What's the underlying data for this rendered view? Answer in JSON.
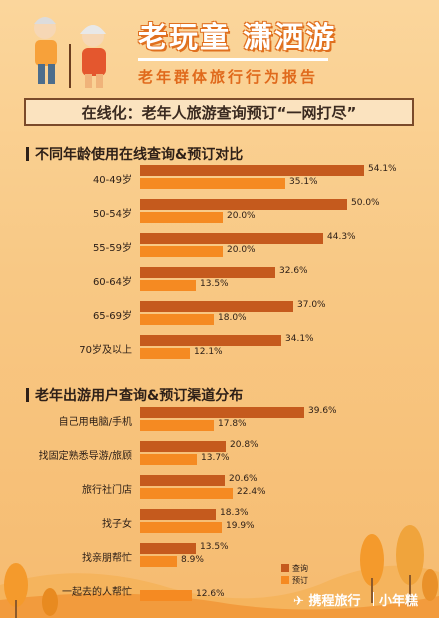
{
  "header": {
    "title": "老玩童 潇洒游",
    "subtitle": "老年群体旅行行为报告",
    "banner": "在线化：老年人旅游查询预订“一网打尽”"
  },
  "colors": {
    "query": "#c55a1d",
    "booking": "#f58a22"
  },
  "brand": {
    "name": "携程旅行",
    "partner": "小年糕",
    "logo_icon": "ctrip-logo-icon"
  },
  "legend": {
    "query": "查询",
    "booking": "预订"
  },
  "chart_data": [
    {
      "type": "bar",
      "orientation": "horizontal",
      "title": "不同年龄使用在线查询&预订对比",
      "categories": [
        "40-49岁",
        "50-54岁",
        "55-59岁",
        "60-64岁",
        "65-69岁",
        "70岁及以上"
      ],
      "series": [
        {
          "name": "查询",
          "values": [
            54.1,
            50.0,
            44.3,
            32.6,
            37.0,
            34.1
          ]
        },
        {
          "name": "预订",
          "values": [
            35.1,
            20.0,
            20.0,
            13.5,
            18.0,
            12.1
          ]
        }
      ],
      "value_labels": {
        "查询": [
          "54.1%",
          "50.0%",
          "44.3%",
          "32.6%",
          "37.0%",
          "34.1%"
        ],
        "预订": [
          "35.1%",
          "20.0%",
          "20.0%",
          "13.5%",
          "18.0%",
          "12.1%"
        ]
      },
      "xlim": [
        0,
        60
      ],
      "grid": false
    },
    {
      "type": "bar",
      "orientation": "horizontal",
      "title": "老年出游用户查询&预订渠道分布",
      "categories": [
        "自己用电脑/手机",
        "找固定熟悉导游/旅顾",
        "旅行社门店",
        "找子女",
        "找亲朋帮忙",
        "一起去的人帮忙"
      ],
      "series": [
        {
          "name": "查询",
          "values": [
            39.6,
            20.8,
            20.6,
            18.3,
            13.5,
            null
          ]
        },
        {
          "name": "预订",
          "values": [
            17.8,
            13.7,
            22.4,
            19.9,
            8.9,
            12.6
          ]
        }
      ],
      "value_labels": {
        "查询": [
          "39.6%",
          "20.8%",
          "20.6%",
          "18.3%",
          "13.5%",
          ""
        ],
        "预订": [
          "17.8%",
          "13.7%",
          "22.4%",
          "19.9%",
          "8.9%",
          "12.6%"
        ]
      },
      "xlim": [
        0,
        60
      ],
      "legend_position": "bottom-right",
      "grid": false
    }
  ]
}
